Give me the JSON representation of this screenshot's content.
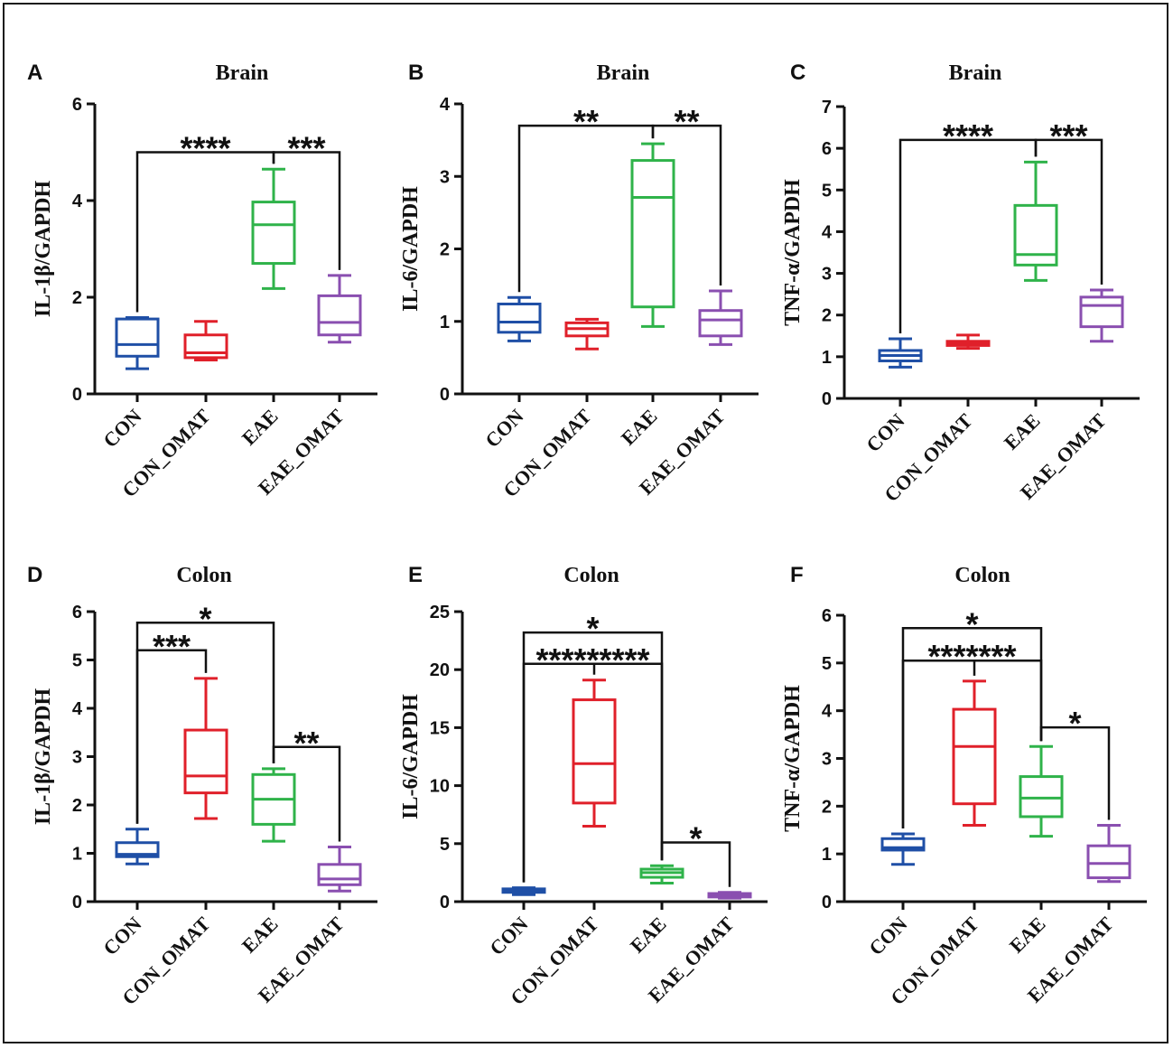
{
  "colors": {
    "CON": "#1f4fa6",
    "CON_OMAT": "#e0202a",
    "EAE": "#2fb34a",
    "EAE_OMAT": "#8a4fb0"
  },
  "chart_data": [
    {
      "panel": "A",
      "type": "box",
      "title": "Brain",
      "ylabel": "IL-1β/GAPDH",
      "ylim": [
        0,
        6
      ],
      "yticks": [
        0,
        2,
        4,
        6
      ],
      "categories": [
        "CON",
        "CON_OMAT",
        "EAE",
        "EAE_OMAT"
      ],
      "boxes": [
        {
          "min": 0.52,
          "q1": 0.78,
          "median": 1.02,
          "q3": 1.55,
          "max": 1.58
        },
        {
          "min": 0.7,
          "q1": 0.75,
          "median": 0.85,
          "q3": 1.22,
          "max": 1.5
        },
        {
          "min": 2.18,
          "q1": 2.7,
          "median": 3.5,
          "q3": 3.97,
          "max": 4.65
        },
        {
          "min": 1.07,
          "q1": 1.22,
          "median": 1.48,
          "q3": 2.03,
          "max": 2.45
        }
      ],
      "comparisons": [
        {
          "from": 0,
          "to": 2,
          "y": 5.0,
          "label": "****"
        },
        {
          "from": 2,
          "to": 3,
          "y": 5.0,
          "label": "***"
        }
      ]
    },
    {
      "panel": "B",
      "type": "box",
      "title": "Brain",
      "ylabel": "IL-6/GAPDH",
      "ylim": [
        0,
        4
      ],
      "yticks": [
        0,
        1,
        2,
        3,
        4
      ],
      "categories": [
        "CON",
        "CON_OMAT",
        "EAE",
        "EAE_OMAT"
      ],
      "boxes": [
        {
          "min": 0.73,
          "q1": 0.85,
          "median": 0.99,
          "q3": 1.24,
          "max": 1.33
        },
        {
          "min": 0.62,
          "q1": 0.8,
          "median": 0.9,
          "q3": 0.98,
          "max": 1.03
        },
        {
          "min": 0.93,
          "q1": 1.2,
          "median": 2.71,
          "q3": 3.22,
          "max": 3.45
        },
        {
          "min": 0.68,
          "q1": 0.8,
          "median": 1.02,
          "q3": 1.15,
          "max": 1.42
        }
      ],
      "comparisons": [
        {
          "from": 0,
          "to": 2,
          "y": 3.7,
          "label": "**"
        },
        {
          "from": 2,
          "to": 3,
          "y": 3.7,
          "label": "**"
        }
      ]
    },
    {
      "panel": "C",
      "type": "box",
      "title": "Brain",
      "ylabel": "TNF-α/GAPDH",
      "ylim": [
        0,
        7
      ],
      "yticks": [
        0,
        1,
        2,
        3,
        4,
        5,
        6,
        7
      ],
      "categories": [
        "CON",
        "CON_OMAT",
        "EAE",
        "EAE_OMAT"
      ],
      "boxes": [
        {
          "min": 0.75,
          "q1": 0.9,
          "median": 1.03,
          "q3": 1.15,
          "max": 1.43
        },
        {
          "min": 1.2,
          "q1": 1.27,
          "median": 1.33,
          "q3": 1.37,
          "max": 1.52
        },
        {
          "min": 2.83,
          "q1": 3.2,
          "median": 3.45,
          "q3": 4.63,
          "max": 5.67
        },
        {
          "min": 1.37,
          "q1": 1.72,
          "median": 2.23,
          "q3": 2.43,
          "max": 2.6
        }
      ],
      "comparisons": [
        {
          "from": 0,
          "to": 2,
          "y": 6.2,
          "label": "****"
        },
        {
          "from": 2,
          "to": 3,
          "y": 6.2,
          "label": "***"
        }
      ]
    },
    {
      "panel": "D",
      "type": "box",
      "title": "Colon",
      "ylabel": "IL-1β/GAPDH",
      "ylim": [
        0,
        6
      ],
      "yticks": [
        0,
        1,
        2,
        3,
        4,
        5,
        6
      ],
      "categories": [
        "CON",
        "CON_OMAT",
        "EAE",
        "EAE_OMAT"
      ],
      "boxes": [
        {
          "min": 0.78,
          "q1": 0.93,
          "median": 0.98,
          "q3": 1.22,
          "max": 1.5
        },
        {
          "min": 1.72,
          "q1": 2.25,
          "median": 2.6,
          "q3": 3.55,
          "max": 4.62
        },
        {
          "min": 1.25,
          "q1": 1.6,
          "median": 2.12,
          "q3": 2.63,
          "max": 2.75
        },
        {
          "min": 0.22,
          "q1": 0.35,
          "median": 0.47,
          "q3": 0.77,
          "max": 1.13
        }
      ],
      "comparisons": [
        {
          "from": 0,
          "to": 2,
          "y": 5.77,
          "label": "*"
        },
        {
          "from": 0,
          "to": 1,
          "y": 5.2,
          "label": "***"
        },
        {
          "from": 2,
          "to": 3,
          "y": 3.2,
          "label": "**"
        }
      ]
    },
    {
      "panel": "E",
      "type": "box",
      "title": "Colon",
      "ylabel": "IL-6/GAPDH",
      "ylim": [
        0,
        25
      ],
      "yticks": [
        0,
        5,
        10,
        15,
        20,
        25
      ],
      "categories": [
        "CON",
        "CON_OMAT",
        "EAE",
        "EAE_OMAT"
      ],
      "boxes": [
        {
          "min": 0.6,
          "q1": 0.8,
          "median": 1.0,
          "q3": 1.1,
          "max": 1.2
        },
        {
          "min": 6.5,
          "q1": 8.5,
          "median": 11.9,
          "q3": 17.4,
          "max": 19.1
        },
        {
          "min": 1.6,
          "q1": 2.1,
          "median": 2.5,
          "q3": 2.8,
          "max": 3.1
        },
        {
          "min": 0.3,
          "q1": 0.4,
          "median": 0.55,
          "q3": 0.7,
          "max": 0.8
        }
      ],
      "comparisons": [
        {
          "from": 0,
          "to": 2,
          "y": 23.2,
          "label": "*"
        },
        {
          "from": 0,
          "to": 2,
          "y": 20.5,
          "mid": 1,
          "label": "*********"
        },
        {
          "from": 2,
          "to": 3,
          "y": 5.1,
          "label": "*"
        }
      ]
    },
    {
      "panel": "F",
      "type": "box",
      "title": "Colon",
      "ylabel": "TNF-α/GAPDH",
      "ylim": [
        0,
        6
      ],
      "yticks": [
        0,
        1,
        2,
        3,
        4,
        5,
        6
      ],
      "categories": [
        "CON",
        "CON_OMAT",
        "EAE",
        "EAE_OMAT"
      ],
      "boxes": [
        {
          "min": 0.78,
          "q1": 1.08,
          "median": 1.13,
          "q3": 1.32,
          "max": 1.42
        },
        {
          "min": 1.6,
          "q1": 2.05,
          "median": 3.25,
          "q3": 4.03,
          "max": 4.62
        },
        {
          "min": 1.37,
          "q1": 1.78,
          "median": 2.17,
          "q3": 2.62,
          "max": 3.25
        },
        {
          "min": 0.42,
          "q1": 0.5,
          "median": 0.8,
          "q3": 1.17,
          "max": 1.6
        }
      ],
      "comparisons": [
        {
          "from": 0,
          "to": 2,
          "y": 5.73,
          "label": "*"
        },
        {
          "from": 0,
          "to": 2,
          "y": 5.05,
          "mid": 1,
          "label": "*******"
        },
        {
          "from": 2,
          "to": 3,
          "y": 3.65,
          "label": "*"
        }
      ]
    }
  ]
}
